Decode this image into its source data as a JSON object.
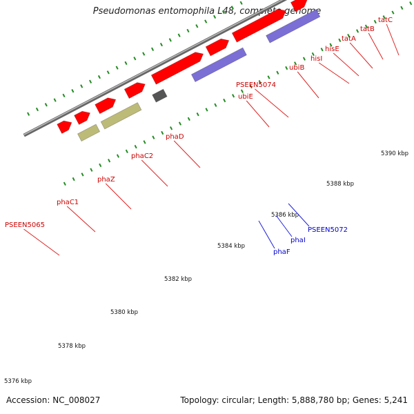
{
  "title": "Pseudomonas entomophila L48, complete genome",
  "footer": {
    "accession": "Accession: NC_008027",
    "summary": "Topology: circular; Length: 5,888,780 bp; Genes: 5,241"
  },
  "colors": {
    "forward_cds": "#ff0000",
    "reverse_cds": "#0000ff",
    "backbone": "#888888",
    "tick": "#228b22",
    "label_forward": "#cc0000",
    "label_reverse": "#0000cc",
    "pha_genes": "#7b6fd6",
    "olive_genes": "#bdbb78",
    "gray_gene": "#555555",
    "light_gray_gene": "#c8c8c8",
    "steel_gene": "#4a86c0",
    "lime_gene": "#aaff33"
  },
  "scale_labels": [
    "5376 kbp",
    "5378 kbp",
    "5380 kbp",
    "5382 kbp",
    "5384 kbp",
    "5386 kbp",
    "5388 kbp",
    "5390 kbp"
  ],
  "forward_gene_labels": [
    "PSEEN5065",
    "phaC1",
    "phaZ",
    "phaC2",
    "phaD",
    "ubiE",
    "PSEEN5074",
    "ubiB",
    "hisI",
    "hisE",
    "tatA",
    "tatB",
    "tatC"
  ],
  "reverse_gene_labels": [
    "phaF",
    "phaI",
    "PSEEN5072"
  ]
}
